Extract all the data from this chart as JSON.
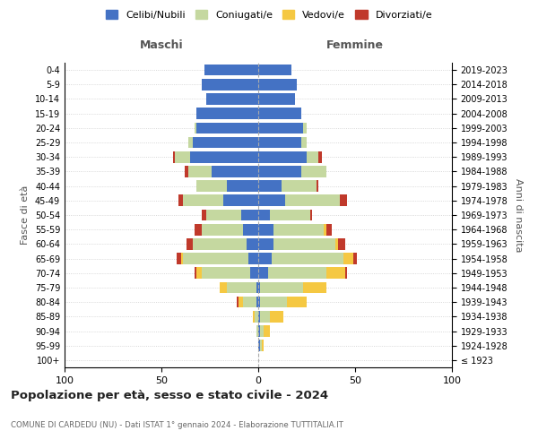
{
  "age_groups": [
    "100+",
    "95-99",
    "90-94",
    "85-89",
    "80-84",
    "75-79",
    "70-74",
    "65-69",
    "60-64",
    "55-59",
    "50-54",
    "45-49",
    "40-44",
    "35-39",
    "30-34",
    "25-29",
    "20-24",
    "15-19",
    "10-14",
    "5-9",
    "0-4"
  ],
  "birth_years": [
    "≤ 1923",
    "1924-1928",
    "1929-1933",
    "1934-1938",
    "1939-1943",
    "1944-1948",
    "1949-1953",
    "1954-1958",
    "1959-1963",
    "1964-1968",
    "1969-1973",
    "1974-1978",
    "1979-1983",
    "1984-1988",
    "1989-1993",
    "1994-1998",
    "1999-2003",
    "2004-2008",
    "2009-2013",
    "2014-2018",
    "2019-2023"
  ],
  "colors": {
    "celibi": "#4472c4",
    "coniugati": "#c5d8a0",
    "vedovi": "#f5c842",
    "divorziati": "#c0392b"
  },
  "maschi": {
    "celibi": [
      0,
      0,
      0,
      0,
      1,
      1,
      4,
      5,
      6,
      8,
      9,
      18,
      16,
      24,
      35,
      34,
      32,
      32,
      27,
      29,
      28
    ],
    "coniugati": [
      0,
      0,
      1,
      2,
      7,
      15,
      25,
      34,
      28,
      21,
      18,
      21,
      16,
      12,
      8,
      2,
      1,
      0,
      0,
      0,
      0
    ],
    "vedovi": [
      0,
      0,
      0,
      1,
      2,
      4,
      3,
      1,
      0,
      0,
      0,
      0,
      0,
      0,
      0,
      0,
      0,
      0,
      0,
      0,
      0
    ],
    "divorziati": [
      0,
      0,
      0,
      0,
      1,
      0,
      1,
      2,
      3,
      4,
      2,
      2,
      0,
      2,
      1,
      0,
      0,
      0,
      0,
      0,
      0
    ]
  },
  "femmine": {
    "celibi": [
      0,
      1,
      1,
      1,
      1,
      1,
      5,
      7,
      8,
      8,
      6,
      14,
      12,
      22,
      25,
      22,
      23,
      22,
      19,
      20,
      17
    ],
    "coniugati": [
      0,
      1,
      2,
      5,
      14,
      22,
      30,
      37,
      32,
      26,
      21,
      28,
      18,
      13,
      6,
      3,
      2,
      0,
      0,
      0,
      0
    ],
    "vedovi": [
      0,
      1,
      3,
      7,
      10,
      12,
      10,
      5,
      1,
      1,
      0,
      0,
      0,
      0,
      0,
      0,
      0,
      0,
      0,
      0,
      0
    ],
    "divorziati": [
      0,
      0,
      0,
      0,
      0,
      0,
      1,
      2,
      4,
      3,
      1,
      4,
      1,
      0,
      2,
      0,
      0,
      0,
      0,
      0,
      0
    ]
  },
  "xlim": 100,
  "title": "Popolazione per età, sesso e stato civile - 2024",
  "subtitle": "COMUNE DI CARDEDU (NU) - Dati ISTAT 1° gennaio 2024 - Elaborazione TUTTITALIA.IT",
  "ylabel_left": "Fasce di età",
  "ylabel_right": "Anni di nascita",
  "legend_labels": [
    "Celibi/Nubili",
    "Coniugati/e",
    "Vedovi/e",
    "Divorziati/e"
  ],
  "maschi_label": "Maschi",
  "femmine_label": "Femmine"
}
